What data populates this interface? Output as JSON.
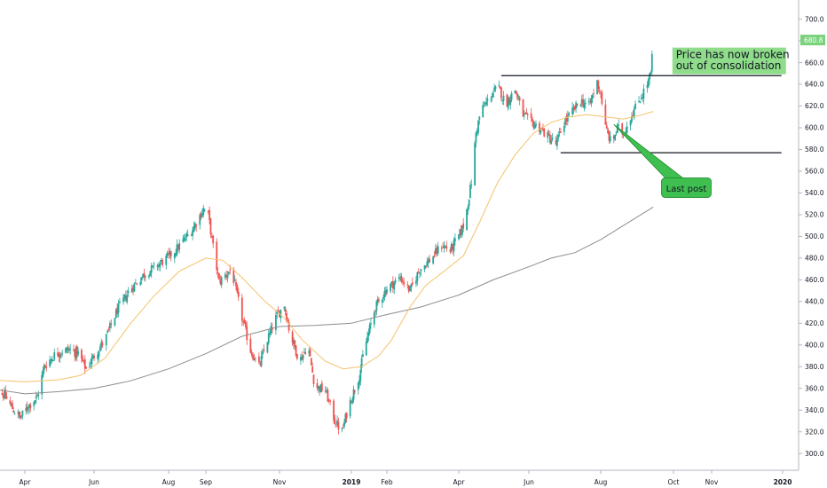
{
  "chart_data": {
    "type": "candlestick",
    "xlabel": "",
    "ylabel": "",
    "ylim": [
      290,
      712
    ],
    "grid": false,
    "last_price": 680.8,
    "colors": {
      "up": "#26a69a",
      "down": "#ef5350",
      "ma_fast": "#f5c26b",
      "ma_slow": "#8d8d8d",
      "level": "#131722",
      "callout_fill": "#8fdc8a",
      "badge": "#7bd27d",
      "axis_text": "#131722",
      "axis_line": "#b2b5be"
    },
    "y_ticks": [
      {
        "value": 300,
        "label": "300.0"
      },
      {
        "value": 320,
        "label": "320.0"
      },
      {
        "value": 340,
        "label": "340.0"
      },
      {
        "value": 360,
        "label": "360.0"
      },
      {
        "value": 380,
        "label": "380.0"
      },
      {
        "value": 400,
        "label": "400.0"
      },
      {
        "value": 420,
        "label": "420.0"
      },
      {
        "value": 440,
        "label": "440.0"
      },
      {
        "value": 460,
        "label": "460.0"
      },
      {
        "value": 480,
        "label": "480.0"
      },
      {
        "value": 500,
        "label": "500.0"
      },
      {
        "value": 520,
        "label": "520.0"
      },
      {
        "value": 540,
        "label": "540.0"
      },
      {
        "value": 560,
        "label": "560.0"
      },
      {
        "value": 580,
        "label": "580.0"
      },
      {
        "value": 600,
        "label": "600.0"
      },
      {
        "value": 620,
        "label": "620.0"
      },
      {
        "value": 640,
        "label": "640.0"
      },
      {
        "value": 660,
        "label": "660.0"
      },
      {
        "value": 680,
        "label": "680.0"
      },
      {
        "value": 700,
        "label": "700.0"
      }
    ],
    "x_ticks": [
      {
        "date": "2018-04-01",
        "label": "Apr",
        "bold": false
      },
      {
        "date": "2018-06-01",
        "label": "Jun",
        "bold": false
      },
      {
        "date": "2018-08-01",
        "label": "Aug",
        "bold": false
      },
      {
        "date": "2018-09-01",
        "label": "Sep",
        "bold": false
      },
      {
        "date": "2018-11-01",
        "label": "Nov",
        "bold": false
      },
      {
        "date": "2019-01-01",
        "label": "2019",
        "bold": true
      },
      {
        "date": "2019-02-01",
        "label": "Feb",
        "bold": false
      },
      {
        "date": "2019-04-01",
        "label": "Apr",
        "bold": false
      },
      {
        "date": "2019-06-01",
        "label": "Jun",
        "bold": false
      },
      {
        "date": "2019-08-01",
        "label": "Aug",
        "bold": false
      },
      {
        "date": "2019-10-01",
        "label": "Oct",
        "bold": false
      },
      {
        "date": "2019-11-01",
        "label": "Nov",
        "bold": false
      },
      {
        "date": "2020-01-01",
        "label": "2020",
        "bold": true
      }
    ],
    "close_path": [
      [
        "2018-03-01",
        390
      ],
      [
        "2018-03-05",
        362
      ],
      [
        "2018-03-15",
        352
      ],
      [
        "2018-03-22",
        340
      ],
      [
        "2018-03-28",
        333
      ],
      [
        "2018-04-05",
        345
      ],
      [
        "2018-04-12",
        352
      ],
      [
        "2018-04-18",
        380
      ],
      [
        "2018-04-28",
        392
      ],
      [
        "2018-05-10",
        396
      ],
      [
        "2018-05-18",
        392
      ],
      [
        "2018-05-25",
        378
      ],
      [
        "2018-06-01",
        390
      ],
      [
        "2018-06-10",
        405
      ],
      [
        "2018-06-20",
        432
      ],
      [
        "2018-07-01",
        452
      ],
      [
        "2018-07-12",
        465
      ],
      [
        "2018-07-25",
        475
      ],
      [
        "2018-08-05",
        485
      ],
      [
        "2018-08-20",
        505
      ],
      [
        "2018-08-30",
        525
      ],
      [
        "2018-09-03",
        520
      ],
      [
        "2018-09-07",
        490
      ],
      [
        "2018-09-12",
        458
      ],
      [
        "2018-09-22",
        470
      ],
      [
        "2018-10-01",
        425
      ],
      [
        "2018-10-08",
        395
      ],
      [
        "2018-10-15",
        380
      ],
      [
        "2018-10-22",
        405
      ],
      [
        "2018-10-29",
        425
      ],
      [
        "2018-11-05",
        437
      ],
      [
        "2018-11-10",
        410
      ],
      [
        "2018-11-18",
        385
      ],
      [
        "2018-11-25",
        400
      ],
      [
        "2018-12-01",
        362
      ],
      [
        "2018-12-10",
        358
      ],
      [
        "2018-12-18",
        330
      ],
      [
        "2018-12-24",
        320
      ],
      [
        "2018-12-30",
        345
      ],
      [
        "2019-01-08",
        372
      ],
      [
        "2019-01-12",
        395
      ],
      [
        "2019-01-17",
        415
      ],
      [
        "2019-01-22",
        435
      ],
      [
        "2019-02-01",
        452
      ],
      [
        "2019-02-12",
        462
      ],
      [
        "2019-02-20",
        450
      ],
      [
        "2019-02-28",
        470
      ],
      [
        "2019-03-10",
        480
      ],
      [
        "2019-03-18",
        492
      ],
      [
        "2019-03-25",
        487
      ],
      [
        "2019-04-01",
        500
      ],
      [
        "2019-04-06",
        512
      ],
      [
        "2019-04-12",
        550
      ],
      [
        "2019-04-16",
        595
      ],
      [
        "2019-04-20",
        615
      ],
      [
        "2019-04-28",
        628
      ],
      [
        "2019-05-05",
        638
      ],
      [
        "2019-05-12",
        622
      ],
      [
        "2019-05-20",
        635
      ],
      [
        "2019-05-27",
        612
      ],
      [
        "2019-06-03",
        605
      ],
      [
        "2019-06-10",
        600
      ],
      [
        "2019-06-17",
        592
      ],
      [
        "2019-06-24",
        585
      ],
      [
        "2019-07-01",
        605
      ],
      [
        "2019-07-08",
        615
      ],
      [
        "2019-07-15",
        625
      ],
      [
        "2019-07-22",
        620
      ],
      [
        "2019-07-29",
        642
      ],
      [
        "2019-08-01",
        632
      ],
      [
        "2019-08-05",
        600
      ],
      [
        "2019-08-10",
        585
      ],
      [
        "2019-08-15",
        600
      ],
      [
        "2019-08-20",
        595
      ],
      [
        "2019-08-26",
        610
      ],
      [
        "2019-09-02",
        625
      ],
      [
        "2019-09-09",
        640
      ],
      [
        "2019-09-12",
        650
      ],
      [
        "2019-09-14",
        680
      ]
    ],
    "ma_fast": [
      [
        "2018-03-01",
        368
      ],
      [
        "2018-04-01",
        366
      ],
      [
        "2018-05-01",
        368
      ],
      [
        "2018-05-20",
        372
      ],
      [
        "2018-06-10",
        388
      ],
      [
        "2018-07-01",
        420
      ],
      [
        "2018-07-20",
        445
      ],
      [
        "2018-08-10",
        468
      ],
      [
        "2018-09-01",
        480
      ],
      [
        "2018-09-15",
        478
      ],
      [
        "2018-10-01",
        462
      ],
      [
        "2018-10-20",
        440
      ],
      [
        "2018-11-05",
        425
      ],
      [
        "2018-11-20",
        405
      ],
      [
        "2018-12-10",
        385
      ],
      [
        "2018-12-25",
        378
      ],
      [
        "2019-01-10",
        380
      ],
      [
        "2019-01-25",
        390
      ],
      [
        "2019-02-05",
        405
      ],
      [
        "2019-02-20",
        435
      ],
      [
        "2019-03-05",
        455
      ],
      [
        "2019-03-20",
        468
      ],
      [
        "2019-04-05",
        482
      ],
      [
        "2019-04-20",
        515
      ],
      [
        "2019-05-05",
        550
      ],
      [
        "2019-05-20",
        575
      ],
      [
        "2019-06-05",
        595
      ],
      [
        "2019-06-20",
        605
      ],
      [
        "2019-07-05",
        610
      ],
      [
        "2019-07-20",
        612
      ],
      [
        "2019-08-05",
        610
      ],
      [
        "2019-08-20",
        608
      ],
      [
        "2019-09-05",
        612
      ],
      [
        "2019-09-14",
        615
      ]
    ],
    "ma_slow": [
      [
        "2018-03-01",
        360
      ],
      [
        "2018-04-01",
        355
      ],
      [
        "2018-05-01",
        357
      ],
      [
        "2018-06-01",
        360
      ],
      [
        "2018-07-01",
        367
      ],
      [
        "2018-08-01",
        378
      ],
      [
        "2018-09-01",
        392
      ],
      [
        "2018-10-01",
        408
      ],
      [
        "2018-11-01",
        417
      ],
      [
        "2018-12-01",
        418
      ],
      [
        "2019-01-01",
        420
      ],
      [
        "2019-02-01",
        428
      ],
      [
        "2019-03-01",
        435
      ],
      [
        "2019-04-01",
        446
      ],
      [
        "2019-05-01",
        460
      ],
      [
        "2019-06-01",
        472
      ],
      [
        "2019-06-20",
        480
      ],
      [
        "2019-07-10",
        485
      ],
      [
        "2019-08-01",
        497
      ],
      [
        "2019-08-20",
        510
      ],
      [
        "2019-09-14",
        527
      ]
    ],
    "levels": [
      {
        "value": 648,
        "from": "2019-05-08",
        "to": "2019-12-31"
      },
      {
        "value": 577,
        "from": "2019-06-28",
        "to": "2019-12-31"
      }
    ],
    "annotations": [
      {
        "text": "Price has now broken\nout of consolidation",
        "x": "2019-10-03",
        "y": 664,
        "style": "box"
      },
      {
        "text": "Last post",
        "x": "2019-10-10",
        "y": 544,
        "arrow_to": [
          "2019-08-12",
          603
        ],
        "style": "callout"
      }
    ]
  }
}
